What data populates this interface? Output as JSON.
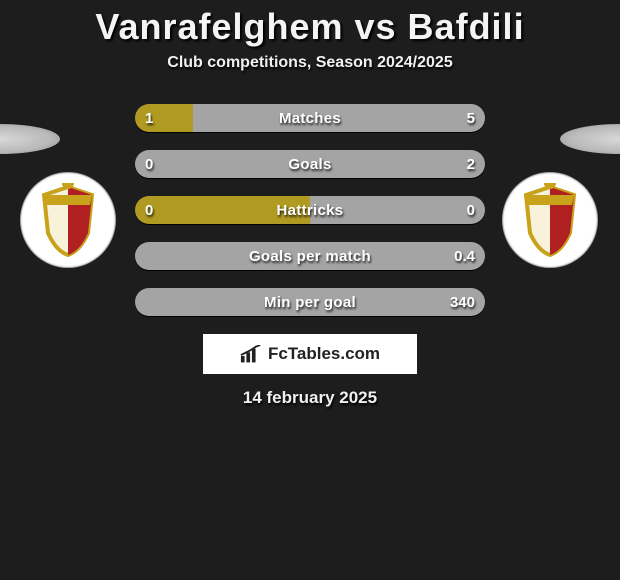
{
  "background_color": "#1d1d1d",
  "header": {
    "title": "Vanrafelghem vs Bafdili",
    "subtitle": "Club competitions, Season 2024/2025",
    "date": "14 february 2025"
  },
  "colors": {
    "left": "#b09a22",
    "right": "#a4a4a4",
    "neutral": "#8a8a8a",
    "text": "#ffffff"
  },
  "bars": [
    {
      "label": "Matches",
      "left_val": "1",
      "right_val": "5",
      "left_pct": 16.7,
      "right_pct": 83.3,
      "left_color": "#b09a22",
      "right_color": "#a4a4a4"
    },
    {
      "label": "Goals",
      "left_val": "0",
      "right_val": "2",
      "left_pct": 0,
      "right_pct": 100,
      "left_color": "#b09a22",
      "right_color": "#a4a4a4"
    },
    {
      "label": "Hattricks",
      "left_val": "0",
      "right_val": "0",
      "left_pct": 50,
      "right_pct": 50,
      "left_color": "#b09a22",
      "right_color": "#a4a4a4"
    },
    {
      "label": "Goals per match",
      "left_val": "",
      "right_val": "0.4",
      "left_pct": 0,
      "right_pct": 100,
      "left_color": "#b09a22",
      "right_color": "#a4a4a4"
    },
    {
      "label": "Min per goal",
      "left_val": "",
      "right_val": "340",
      "left_pct": 0,
      "right_pct": 100,
      "left_color": "#b09a22",
      "right_color": "#a4a4a4"
    }
  ],
  "footer": {
    "site_label": "FcTables.com"
  },
  "club": {
    "crest_colors": {
      "gold": "#c7a21a",
      "red": "#b02020",
      "black": "#111"
    }
  }
}
